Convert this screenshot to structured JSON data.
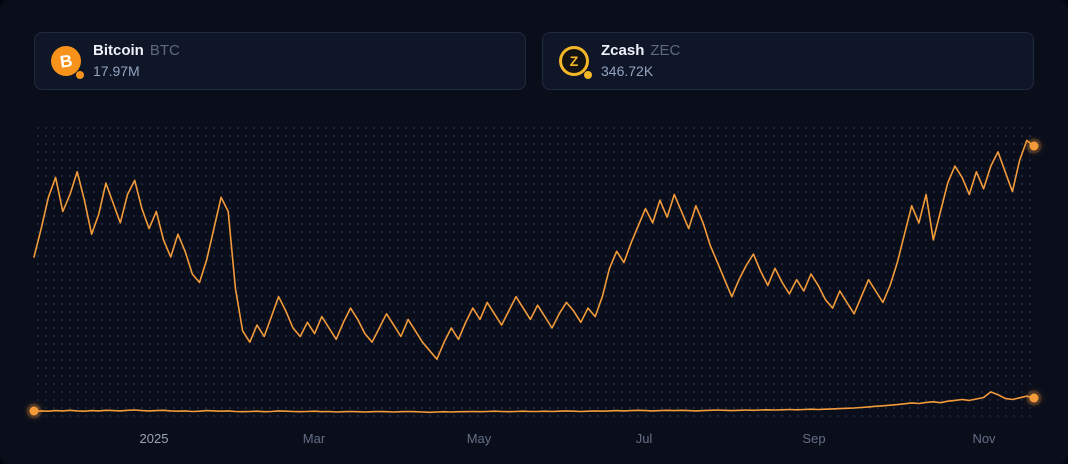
{
  "cards": [
    {
      "name": "Bitcoin",
      "symbol": "BTC",
      "value": "17.97M",
      "icon": "bitcoin-icon",
      "glyph": "B",
      "color": "#f7931a"
    },
    {
      "name": "Zcash",
      "symbol": "ZEC",
      "value": "346.72K",
      "icon": "zcash-icon",
      "glyph": "Z",
      "color": "#f4b728"
    }
  ],
  "colors": {
    "page_bg": "#0a0e1b",
    "card_bg": "#0f1627",
    "card_border": "#202a40",
    "line_orange": "#f39b3a",
    "dot_grid": "#1d2742",
    "value_text": "#92a4c0",
    "axis_label": "#636e84"
  },
  "chart_data": {
    "type": "line",
    "title": "",
    "xlabel": "",
    "ylabel": "",
    "grid": "dotted-background",
    "legend_position": "top-cards",
    "x_range": [
      "Nov 2024",
      "Nov 2025"
    ],
    "ylim": [
      0,
      100
    ],
    "y_units": "normalized (no y-axis shown in chart)",
    "x_labels": [
      {
        "text": "2025",
        "pos": 12,
        "bright": true
      },
      {
        "text": "Mar",
        "pos": 28,
        "bright": false
      },
      {
        "text": "May",
        "pos": 44.5,
        "bright": false
      },
      {
        "text": "Jul",
        "pos": 61,
        "bright": false
      },
      {
        "text": "Sep",
        "pos": 78,
        "bright": false
      },
      {
        "text": "Nov",
        "pos": 95,
        "bright": false
      }
    ],
    "series": [
      {
        "name": "Bitcoin BTC",
        "color": "#f39b3a",
        "values": [
          56,
          66,
          77,
          84,
          72,
          78,
          86,
          76,
          64,
          71,
          82,
          75,
          68,
          78,
          83,
          73,
          66,
          72,
          62,
          56,
          64,
          58,
          50,
          47,
          55,
          66,
          77,
          72,
          45,
          30,
          26,
          32,
          28,
          35,
          42,
          37,
          31,
          28,
          33,
          29,
          35,
          31,
          27,
          33,
          38,
          34,
          29,
          26,
          31,
          36,
          32,
          28,
          34,
          30,
          26,
          23,
          20,
          26,
          31,
          27,
          33,
          38,
          34,
          40,
          36,
          32,
          37,
          42,
          38,
          34,
          39,
          35,
          31,
          36,
          40,
          37,
          33,
          38,
          35,
          42,
          52,
          58,
          54,
          61,
          67,
          73,
          68,
          76,
          70,
          78,
          72,
          66,
          74,
          68,
          60,
          54,
          48,
          42,
          48,
          53,
          57,
          51,
          46,
          52,
          47,
          43,
          48,
          44,
          50,
          46,
          41,
          38,
          44,
          40,
          36,
          42,
          48,
          44,
          40,
          46,
          54,
          64,
          74,
          68,
          78,
          62,
          72,
          82,
          88,
          84,
          78,
          86,
          80,
          88,
          93,
          86,
          79,
          90,
          97,
          95
        ]
      },
      {
        "name": "Zcash ZEC",
        "color": "#f39b3a",
        "values": [
          1.6,
          1.8,
          1.7,
          1.9,
          1.8,
          2.0,
          1.8,
          1.7,
          1.9,
          1.8,
          2.0,
          1.9,
          1.8,
          2.0,
          2.1,
          1.9,
          1.8,
          1.9,
          2.0,
          1.8,
          1.7,
          1.8,
          1.6,
          1.7,
          1.9,
          1.8,
          1.7,
          1.8,
          1.6,
          1.5,
          1.6,
          1.7,
          1.5,
          1.6,
          1.8,
          1.7,
          1.6,
          1.5,
          1.6,
          1.7,
          1.5,
          1.6,
          1.4,
          1.5,
          1.6,
          1.5,
          1.4,
          1.5,
          1.6,
          1.5,
          1.4,
          1.5,
          1.6,
          1.5,
          1.4,
          1.3,
          1.4,
          1.5,
          1.4,
          1.5,
          1.5,
          1.6,
          1.5,
          1.6,
          1.7,
          1.6,
          1.5,
          1.6,
          1.7,
          1.6,
          1.6,
          1.7,
          1.6,
          1.7,
          1.8,
          1.7,
          1.6,
          1.7,
          1.8,
          1.7,
          1.8,
          1.9,
          1.8,
          1.9,
          2.0,
          1.9,
          1.8,
          1.9,
          2.0,
          1.9,
          2.0,
          1.9,
          1.8,
          1.9,
          2.0,
          2.1,
          2.0,
          1.9,
          2.0,
          2.1,
          2.0,
          2.1,
          2.2,
          2.1,
          2.2,
          2.3,
          2.2,
          2.3,
          2.4,
          2.3,
          2.4,
          2.5,
          2.6,
          2.7,
          2.8,
          3.0,
          3.2,
          3.4,
          3.6,
          3.8,
          4.0,
          4.3,
          4.6,
          4.4,
          4.8,
          5.0,
          4.7,
          5.2,
          5.5,
          5.8,
          5.5,
          6.0,
          6.5,
          8.5,
          7.5,
          6.2,
          5.8,
          6.4,
          7.0,
          6.2
        ]
      }
    ],
    "markers": [
      {
        "series": 0,
        "pos": "end",
        "name": "bitcoin-latest-point"
      },
      {
        "series": 1,
        "pos": "start",
        "name": "zcash-first-point"
      },
      {
        "series": 1,
        "pos": "end",
        "name": "zcash-latest-point"
      }
    ]
  }
}
